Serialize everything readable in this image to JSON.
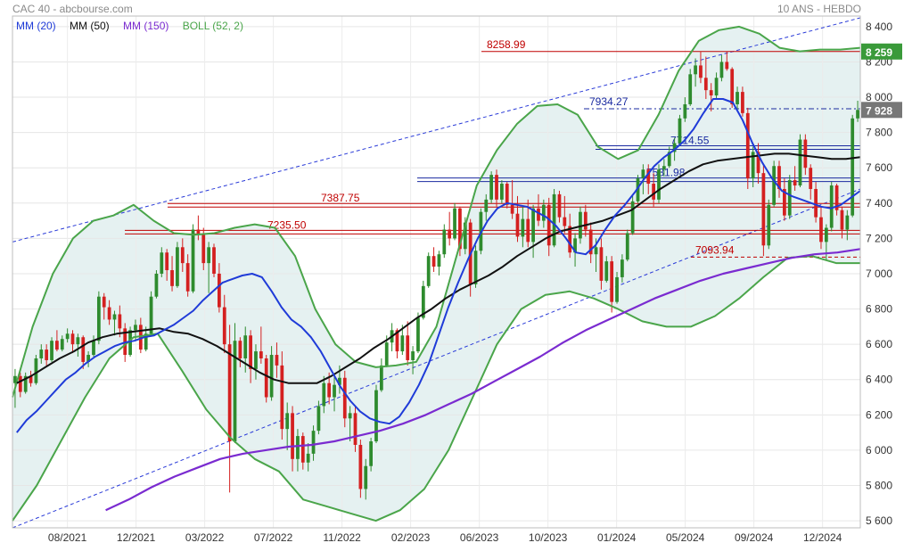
{
  "header": {
    "left_title": "CAC 40 - abcbourse.com",
    "right_title": "10 ANS - HEBDO"
  },
  "legend": [
    {
      "label": "MM (20)",
      "color": "#1f3bd8"
    },
    {
      "label": "MM (50)",
      "color": "#111111"
    },
    {
      "label": "MM (150)",
      "color": "#7a2bd0"
    },
    {
      "label": "BOLL (52, 2)",
      "color": "#4aa54a"
    }
  ],
  "chart_data": {
    "type": "candlestick",
    "title": "CAC 40",
    "ylim": [
      5560,
      8460
    ],
    "y_ticks": [
      5600,
      5800,
      6000,
      6200,
      6400,
      6600,
      6800,
      7000,
      7200,
      7400,
      7600,
      7800,
      8000,
      8200,
      8400
    ],
    "y_tick_labels": [
      "5 600",
      "5 800",
      "6 000",
      "6 200",
      "6 400",
      "6 600",
      "6 800",
      "7 000",
      "7 200",
      "7 400",
      "7 600",
      "7 800",
      "8 000",
      "8 200",
      "8 400"
    ],
    "x_tick_labels": [
      "08/2021",
      "12/2021",
      "03/2022",
      "07/2022",
      "11/2022",
      "02/2023",
      "06/2023",
      "10/2023",
      "01/2024",
      "05/2024",
      "09/2024",
      "12/2024"
    ],
    "current_value": {
      "label": "7 928",
      "value": 7928,
      "color": "#777777"
    },
    "boll_upper_value": {
      "label": "8 259",
      "value": 8259,
      "color": "#3a9a3a"
    },
    "levels": [
      {
        "label": "8258.99",
        "value": 8258.99,
        "color": "#c00000",
        "style": "solid"
      },
      {
        "label": "7934.27",
        "value": 7934.27,
        "color": "#1a2aa0",
        "style": "dashdot"
      },
      {
        "label": "7714.55",
        "value": 7714.55,
        "color": "#1a2aa0",
        "style": "double"
      },
      {
        "label": "7531.98",
        "value": 7531.98,
        "color": "#1a2aa0",
        "style": "double"
      },
      {
        "label": "7387.75",
        "value": 7387.75,
        "color": "#c00000",
        "style": "double"
      },
      {
        "label": "7235.50",
        "value": 7235.5,
        "color": "#c00000",
        "style": "double"
      },
      {
        "label": "7093.94",
        "value": 7093.94,
        "color": "#c00000",
        "style": "dashed"
      }
    ],
    "candles": [
      [
        6380,
        6460,
        6240,
        6420
      ],
      [
        6420,
        6440,
        6300,
        6330
      ],
      [
        6330,
        6440,
        6320,
        6420
      ],
      [
        6420,
        6450,
        6360,
        6380
      ],
      [
        6380,
        6540,
        6370,
        6520
      ],
      [
        6520,
        6600,
        6490,
        6570
      ],
      [
        6570,
        6600,
        6480,
        6510
      ],
      [
        6510,
        6640,
        6500,
        6620
      ],
      [
        6620,
        6680,
        6560,
        6570
      ],
      [
        6570,
        6650,
        6560,
        6630
      ],
      [
        6630,
        6690,
        6610,
        6660
      ],
      [
        6660,
        6680,
        6550,
        6600
      ],
      [
        6600,
        6660,
        6530,
        6640
      ],
      [
        6640,
        6650,
        6460,
        6500
      ],
      [
        6500,
        6560,
        6470,
        6540
      ],
      [
        6540,
        6650,
        6530,
        6620
      ],
      [
        6620,
        6900,
        6600,
        6870
      ],
      [
        6870,
        6890,
        6740,
        6810
      ],
      [
        6810,
        6850,
        6710,
        6740
      ],
      [
        6740,
        6790,
        6650,
        6770
      ],
      [
        6770,
        6820,
        6640,
        6690
      ],
      [
        6690,
        6720,
        6500,
        6540
      ],
      [
        6540,
        6700,
        6530,
        6680
      ],
      [
        6680,
        6740,
        6620,
        6710
      ],
      [
        6710,
        6750,
        6550,
        6570
      ],
      [
        6570,
        6700,
        6560,
        6660
      ],
      [
        6660,
        6900,
        6650,
        6870
      ],
      [
        6870,
        7020,
        6860,
        7000
      ],
      [
        7000,
        7150,
        6980,
        7120
      ],
      [
        7120,
        7140,
        6960,
        7020
      ],
      [
        7020,
        7100,
        6900,
        6930
      ],
      [
        6930,
        7180,
        6920,
        7150
      ],
      [
        7150,
        7200,
        7010,
        7060
      ],
      [
        7060,
        7110,
        6870,
        6900
      ],
      [
        6900,
        7280,
        6890,
        7250
      ],
      [
        7250,
        7330,
        7190,
        7220
      ],
      [
        7220,
        7260,
        7020,
        7060
      ],
      [
        7060,
        7180,
        6890,
        7150
      ],
      [
        7150,
        7170,
        6980,
        7000
      ],
      [
        7000,
        7060,
        6780,
        6810
      ],
      [
        6810,
        6880,
        6550,
        6600
      ],
      [
        6600,
        6710,
        5760,
        6050
      ],
      [
        6050,
        6720,
        6040,
        6620
      ],
      [
        6620,
        6640,
        6470,
        6520
      ],
      [
        6520,
        6700,
        6440,
        6650
      ],
      [
        6650,
        6680,
        6380,
        6460
      ],
      [
        6460,
        6600,
        6400,
        6560
      ],
      [
        6560,
        6700,
        6490,
        6520
      ],
      [
        6520,
        6540,
        6270,
        6300
      ],
      [
        6300,
        6590,
        6280,
        6540
      ],
      [
        6540,
        6610,
        6410,
        6480
      ],
      [
        6480,
        6560,
        6060,
        6120
      ],
      [
        6120,
        6270,
        6000,
        6210
      ],
      [
        6210,
        6250,
        5880,
        5950
      ],
      [
        5950,
        6120,
        5880,
        6080
      ],
      [
        6080,
        6100,
        5890,
        5930
      ],
      [
        5930,
        6040,
        5880,
        5980
      ],
      [
        5980,
        6140,
        5940,
        6110
      ],
      [
        6110,
        6280,
        6090,
        6250
      ],
      [
        6250,
        6420,
        6210,
        6380
      ],
      [
        6380,
        6440,
        6260,
        6300
      ],
      [
        6300,
        6420,
        6220,
        6370
      ],
      [
        6370,
        6480,
        6320,
        6410
      ],
      [
        6410,
        6450,
        6130,
        6180
      ],
      [
        6180,
        6250,
        6050,
        6210
      ],
      [
        6210,
        6250,
        5990,
        6030
      ],
      [
        6030,
        6060,
        5730,
        5780
      ],
      [
        5780,
        5950,
        5720,
        5910
      ],
      [
        5910,
        6070,
        5880,
        6050
      ],
      [
        6050,
        6370,
        6040,
        6340
      ],
      [
        6340,
        6520,
        6330,
        6480
      ],
      [
        6480,
        6650,
        6470,
        6610
      ],
      [
        6610,
        6720,
        6560,
        6680
      ],
      [
        6680,
        6690,
        6520,
        6560
      ],
      [
        6560,
        6710,
        6540,
        6650
      ],
      [
        6650,
        6730,
        6480,
        6510
      ],
      [
        6510,
        6590,
        6430,
        6560
      ],
      [
        6560,
        6780,
        6550,
        6750
      ],
      [
        6750,
        6960,
        6740,
        6930
      ],
      [
        6930,
        7120,
        6920,
        7100
      ],
      [
        7100,
        7150,
        7010,
        7040
      ],
      [
        7040,
        7130,
        6990,
        7110
      ],
      [
        7110,
        7280,
        7090,
        7250
      ],
      [
        7250,
        7350,
        7160,
        7200
      ],
      [
        7200,
        7400,
        7190,
        7370
      ],
      [
        7370,
        7380,
        7100,
        7140
      ],
      [
        7140,
        7320,
        7110,
        7290
      ],
      [
        7290,
        7310,
        6870,
        6940
      ],
      [
        6940,
        7160,
        6920,
        7130
      ],
      [
        7130,
        7370,
        7110,
        7350
      ],
      [
        7350,
        7450,
        7300,
        7420
      ],
      [
        7420,
        7580,
        7400,
        7560
      ],
      [
        7560,
        7590,
        7380,
        7420
      ],
      [
        7420,
        7530,
        7400,
        7510
      ],
      [
        7510,
        7520,
        7370,
        7390
      ],
      [
        7390,
        7530,
        7310,
        7340
      ],
      [
        7340,
        7440,
        7180,
        7210
      ],
      [
        7210,
        7380,
        7150,
        7310
      ],
      [
        7310,
        7420,
        7150,
        7180
      ],
      [
        7180,
        7390,
        7090,
        7370
      ],
      [
        7370,
        7450,
        7270,
        7300
      ],
      [
        7300,
        7420,
        7260,
        7390
      ],
      [
        7390,
        7430,
        7100,
        7160
      ],
      [
        7160,
        7480,
        7150,
        7450
      ],
      [
        7450,
        7470,
        7290,
        7320
      ],
      [
        7320,
        7440,
        7230,
        7270
      ],
      [
        7270,
        7340,
        7090,
        7120
      ],
      [
        7120,
        7230,
        7040,
        7200
      ],
      [
        7200,
        7380,
        7170,
        7350
      ],
      [
        7350,
        7390,
        7210,
        7250
      ],
      [
        7250,
        7290,
        7060,
        7110
      ],
      [
        7110,
        7200,
        7010,
        7150
      ],
      [
        7150,
        7200,
        6910,
        6960
      ],
      [
        6960,
        7100,
        6950,
        7070
      ],
      [
        7070,
        7100,
        6780,
        6840
      ],
      [
        6840,
        7010,
        6830,
        6980
      ],
      [
        6980,
        7110,
        6950,
        7080
      ],
      [
        7080,
        7250,
        7070,
        7230
      ],
      [
        7230,
        7440,
        7220,
        7410
      ],
      [
        7410,
        7560,
        7400,
        7540
      ],
      [
        7540,
        7620,
        7450,
        7590
      ],
      [
        7590,
        7620,
        7450,
        7510
      ],
      [
        7510,
        7570,
        7380,
        7420
      ],
      [
        7420,
        7620,
        7400,
        7590
      ],
      [
        7590,
        7650,
        7550,
        7610
      ],
      [
        7610,
        7720,
        7600,
        7690
      ],
      [
        7690,
        7770,
        7640,
        7740
      ],
      [
        7740,
        7900,
        7730,
        7880
      ],
      [
        7880,
        8000,
        7860,
        7960
      ],
      [
        7960,
        8160,
        7950,
        8130
      ],
      [
        8130,
        8220,
        8060,
        8180
      ],
      [
        8180,
        8260,
        8080,
        8110
      ],
      [
        8110,
        8230,
        7990,
        8040
      ],
      [
        8040,
        8080,
        7920,
        8010
      ],
      [
        8010,
        8140,
        7990,
        8110
      ],
      [
        8110,
        8240,
        8090,
        8200
      ],
      [
        8200,
        8260,
        8150,
        8160
      ],
      [
        8160,
        8170,
        7940,
        7960
      ],
      [
        7960,
        8060,
        7920,
        8030
      ],
      [
        8030,
        8060,
        7890,
        7910
      ],
      [
        7910,
        7940,
        7480,
        7540
      ],
      [
        7540,
        7720,
        7490,
        7690
      ],
      [
        7690,
        7740,
        7510,
        7570
      ],
      [
        7570,
        7620,
        7100,
        7160
      ],
      [
        7160,
        7420,
        7140,
        7390
      ],
      [
        7390,
        7640,
        7380,
        7610
      ],
      [
        7610,
        7640,
        7430,
        7480
      ],
      [
        7480,
        7540,
        7300,
        7330
      ],
      [
        7330,
        7560,
        7310,
        7530
      ],
      [
        7530,
        7610,
        7470,
        7500
      ],
      [
        7500,
        7790,
        7490,
        7760
      ],
      [
        7760,
        7790,
        7560,
        7600
      ],
      [
        7600,
        7620,
        7420,
        7480
      ],
      [
        7480,
        7520,
        7290,
        7320
      ],
      [
        7320,
        7380,
        7140,
        7180
      ],
      [
        7180,
        7280,
        7080,
        7260
      ],
      [
        7260,
        7520,
        7240,
        7500
      ],
      [
        7500,
        7510,
        7330,
        7360
      ],
      [
        7360,
        7380,
        7200,
        7250
      ],
      [
        7250,
        7360,
        7190,
        7330
      ],
      [
        7330,
        7900,
        7320,
        7880
      ],
      [
        7880,
        7980,
        7860,
        7928
      ]
    ],
    "ma20": [
      6100,
      6170,
      6220,
      6280,
      6340,
      6400,
      6440,
      6490,
      6530,
      6560,
      6590,
      6610,
      6620,
      6640,
      6650,
      6680,
      6710,
      6750,
      6790,
      6850,
      6900,
      6950,
      6970,
      6990,
      7000,
      6980,
      6900,
      6810,
      6740,
      6700,
      6640,
      6560,
      6460,
      6360,
      6280,
      6220,
      6180,
      6160,
      6150,
      6190,
      6270,
      6370,
      6490,
      6650,
      6810,
      6950,
      7080,
      7200,
      7300,
      7370,
      7400,
      7390,
      7380,
      7350,
      7320,
      7270,
      7200,
      7120,
      7110,
      7160,
      7250,
      7330,
      7390,
      7460,
      7540,
      7610,
      7660,
      7700,
      7750,
      7820,
      7910,
      7990,
      7990,
      7970,
      7870,
      7740,
      7630,
      7540,
      7470,
      7440,
      7420,
      7400,
      7380,
      7370,
      7390,
      7430,
      7470
    ],
    "ma50": [
      6380,
      6420,
      6470,
      6520,
      6560,
      6610,
      6640,
      6660,
      6670,
      6680,
      6690,
      6670,
      6660,
      6630,
      6590,
      6540,
      6490,
      6440,
      6400,
      6380,
      6380,
      6380,
      6420,
      6470,
      6520,
      6580,
      6630,
      6690,
      6750,
      6800,
      6860,
      6910,
      6950,
      6990,
      7040,
      7100,
      7150,
      7200,
      7240,
      7260,
      7280,
      7300,
      7330,
      7360,
      7420,
      7480,
      7530,
      7580,
      7620,
      7640,
      7650,
      7660,
      7670,
      7680,
      7680,
      7670,
      7660,
      7650,
      7650,
      7660
    ],
    "ma150": [
      5660,
      5720,
      5790,
      5850,
      5900,
      5950,
      5980,
      6000,
      6020,
      6030,
      6050,
      6080,
      6110,
      6150,
      6200,
      6260,
      6320,
      6390,
      6460,
      6530,
      6610,
      6680,
      6740,
      6800,
      6860,
      6910,
      6960,
      7000,
      7030,
      7060,
      7090,
      7110,
      7120,
      7140
    ],
    "boll_upper": [
      6300,
      6700,
      7000,
      7200,
      7300,
      7330,
      7390,
      7300,
      7230,
      7220,
      7230,
      7260,
      7280,
      7260,
      7100,
      6800,
      6600,
      6500,
      6470,
      6480,
      6500,
      6700,
      7100,
      7500,
      7700,
      7850,
      7950,
      7960,
      7900,
      7720,
      7650,
      7700,
      7900,
      8150,
      8320,
      8380,
      8400,
      8360,
      8280,
      8260,
      8270,
      8270,
      8280
    ],
    "boll_lower": [
      5600,
      5800,
      6050,
      6300,
      6520,
      6640,
      6660,
      6450,
      6230,
      6070,
      5950,
      5880,
      5720,
      5680,
      5640,
      5600,
      5660,
      5780,
      6000,
      6300,
      6600,
      6800,
      6880,
      6900,
      6860,
      6800,
      6730,
      6700,
      6700,
      6760,
      6860,
      6980,
      7090,
      7100,
      7060,
      7060
    ],
    "trend_upper": {
      "from": [
        0,
        7180
      ],
      "to": [
        1,
        8450
      ]
    },
    "trend_lower": {
      "from": [
        0,
        5560
      ],
      "to": [
        1,
        7480
      ]
    }
  }
}
